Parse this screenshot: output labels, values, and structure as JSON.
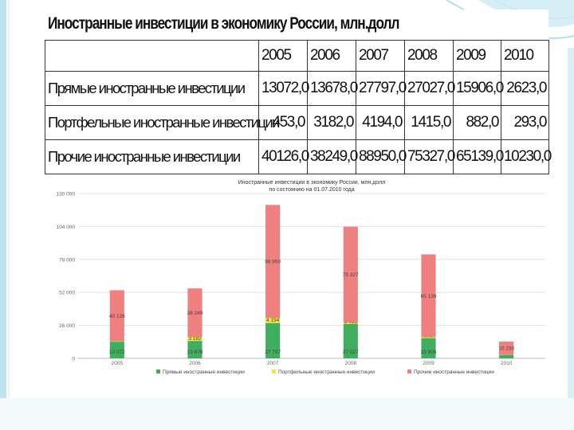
{
  "table": {
    "title": "Иностранные инвестиции в экономику России, млн.долл",
    "years": [
      "2005",
      "2006",
      "2007",
      "2008",
      "2009",
      "2010"
    ],
    "rows": [
      {
        "label": "Прямые иностранные инвестиции",
        "values": [
          "13072,0",
          "13678,0",
          "27797,0",
          "27027,0",
          "15906,0",
          "2623,0"
        ]
      },
      {
        "label": "Портфельные иностранные инвестиции",
        "values": [
          "453,0",
          "3182,0",
          "4194,0",
          "1415,0",
          "882,0",
          "293,0"
        ]
      },
      {
        "label": "Прочие иностранные инвестиции",
        "values": [
          "40126,0",
          "38249,0",
          "88950,0",
          "75327,0",
          "65139,0",
          "10230,0"
        ]
      }
    ]
  },
  "colors": {
    "direct": "#3fae5e",
    "portfolio": "#f2e43a",
    "other": "#f08080",
    "grid": "#e2e2e2",
    "axis_text": "#666666",
    "slide_accent": "#7ecfe0"
  },
  "chart_data": {
    "type": "bar",
    "stacked": true,
    "title_line1": "Иностранные инвестиции в экономику России, млн.долл",
    "title_line2": "по состоянию на 01.07.2010 года",
    "categories": [
      "2005",
      "2006",
      "2007",
      "2008",
      "2009",
      "2010"
    ],
    "series": [
      {
        "name": "Прямые иностранные инвестиции",
        "values": [
          13072,
          13678,
          27797,
          27027,
          15906,
          2623
        ],
        "labels": [
          "13 072",
          "13 678",
          "27 797",
          "27 027",
          "15 906",
          "2 623"
        ]
      },
      {
        "name": "Портфельные иностранные инвестиции",
        "values": [
          453,
          3182,
          4194,
          1415,
          882,
          293
        ],
        "labels": [
          "453",
          "3 182",
          "4 194",
          "1 415",
          "882",
          "293"
        ]
      },
      {
        "name": "Прочие иностранные инвестиции",
        "values": [
          40126,
          38249,
          88950,
          75327,
          65139,
          10230
        ],
        "labels": [
          "40 126",
          "38 249",
          "88 950",
          "75 327",
          "65 139",
          "10 230"
        ]
      }
    ],
    "yticks": [
      0,
      26000,
      52000,
      78000,
      104000,
      130000
    ],
    "ytick_labels": [
      "0",
      "26 000",
      "52 000",
      "78 000",
      "104 000",
      "130 000"
    ],
    "ylim": [
      0,
      130000
    ],
    "legend_position": "bottom",
    "grid": true
  }
}
